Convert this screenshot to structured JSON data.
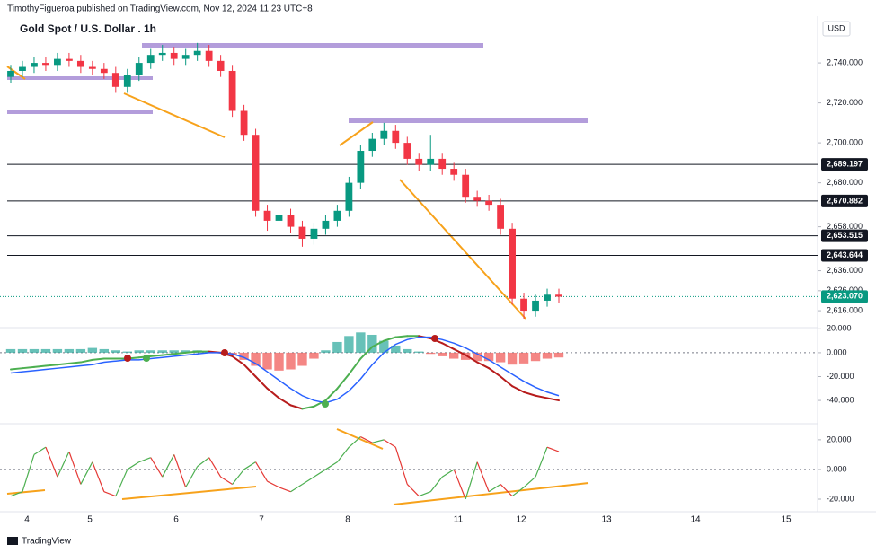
{
  "header": {
    "author_line": "TimothyFigueroa published on TradingView.com, Nov 12, 2024 11:23 UTC+8",
    "currency": "USD"
  },
  "footer": {
    "brand": "TradingView"
  },
  "x_axis_labels": [
    "4",
    "5",
    "6",
    "7",
    "8",
    "11",
    "12",
    "13",
    "14",
    "15"
  ],
  "chart_data": [
    {
      "type": "candlestick",
      "title": "Gold Spot / U.S. Dollar . 1h",
      "up_color": "#089981",
      "down_color": "#f23645",
      "open": [
        2733,
        2736,
        2738,
        2740,
        2739,
        2742,
        2741,
        2738,
        2737,
        2735,
        2728,
        2734,
        2740,
        2744,
        2745,
        2742,
        2744,
        2746,
        2741,
        2736,
        2716,
        2704,
        2666,
        2661,
        2664,
        2658,
        2652,
        2657,
        2661,
        2666,
        2680,
        2696,
        2702,
        2706,
        2700,
        2692,
        2689,
        2692,
        2687,
        2684,
        2673,
        2671,
        2669,
        2657,
        2622,
        2616,
        2621,
        2624
      ],
      "high": [
        2739,
        2741,
        2743,
        2743,
        2745,
        2745,
        2744,
        2741,
        2740,
        2738,
        2737,
        2743,
        2747,
        2749,
        2748,
        2747,
        2750,
        2749,
        2744,
        2739,
        2719,
        2707,
        2669,
        2667,
        2667,
        2661,
        2660,
        2664,
        2669,
        2683,
        2699,
        2705,
        2710,
        2709,
        2703,
        2695,
        2704,
        2695,
        2690,
        2687,
        2676,
        2674,
        2672,
        2660,
        2625,
        2624,
        2627,
        2627
      ],
      "low": [
        2730,
        2733,
        2735,
        2736,
        2736,
        2738,
        2735,
        2734,
        2732,
        2725,
        2725,
        2731,
        2737,
        2741,
        2739,
        2739,
        2741,
        2738,
        2733,
        2713,
        2701,
        2663,
        2656,
        2658,
        2655,
        2648,
        2649,
        2654,
        2658,
        2663,
        2677,
        2693,
        2699,
        2697,
        2689,
        2686,
        2686,
        2684,
        2681,
        2670,
        2668,
        2666,
        2654,
        2619,
        2612,
        2613,
        2618,
        2620
      ],
      "close": [
        2736,
        2738,
        2740,
        2739,
        2742,
        2741,
        2738,
        2737,
        2735,
        2728,
        2734,
        2740,
        2744,
        2745,
        2742,
        2744,
        2746,
        2741,
        2736,
        2716,
        2704,
        2666,
        2661,
        2664,
        2658,
        2652,
        2657,
        2661,
        2666,
        2680,
        2696,
        2702,
        2706,
        2700,
        2692,
        2689,
        2692,
        2687,
        2684,
        2673,
        2671,
        2669,
        2657,
        2622,
        2616,
        2621,
        2624,
        2623
      ],
      "ylim": [
        2607.5,
        2762.5
      ],
      "yticks": [
        {
          "value": 2740,
          "label": "2,740.000"
        },
        {
          "value": 2720,
          "label": "2,720.000"
        },
        {
          "value": 2700,
          "label": "2,700.000"
        },
        {
          "value": 2680,
          "label": "2,680.000"
        },
        {
          "value": 2658,
          "label": "2,658.000"
        },
        {
          "value": 2636,
          "label": "2,636.000"
        },
        {
          "value": 2626,
          "label": "2,626.000"
        },
        {
          "value": 2616,
          "label": "2,616.000"
        }
      ],
      "levels": [
        {
          "value": 2689.197,
          "label": "2,689.197"
        },
        {
          "value": 2670.882,
          "label": "2,670.882"
        },
        {
          "value": 2653.515,
          "label": "2,653.515"
        },
        {
          "value": 2643.644,
          "label": "2,643.644"
        }
      ],
      "last_price": {
        "value": 2623.07,
        "label": "2,623.070"
      },
      "last_color": "#089981"
    },
    {
      "type": "macd",
      "series": [
        {
          "name": "MACD",
          "color": "#4caf50",
          "values": [
            -14,
            -13,
            -12,
            -11,
            -10,
            -9,
            -8,
            -6,
            -5,
            -5,
            -5,
            -4,
            -3,
            -2,
            -1,
            0,
            1,
            1,
            0,
            -3,
            -10,
            -20,
            -30,
            -38,
            -44,
            -47,
            -45,
            -40,
            -30,
            -18,
            -5,
            5,
            10,
            13,
            14,
            14,
            12,
            8,
            3,
            -2,
            -8,
            -13,
            -20,
            -28,
            -33,
            -36,
            -38,
            -40
          ]
        },
        {
          "name": "Signal",
          "color": "#2962ff",
          "values": [
            -17,
            -16,
            -15,
            -14,
            -13,
            -12,
            -11,
            -10,
            -8,
            -7,
            -6,
            -6,
            -5,
            -4,
            -3,
            -2,
            -1,
            0,
            0,
            -1,
            -4,
            -9,
            -16,
            -23,
            -30,
            -36,
            -40,
            -42,
            -39,
            -32,
            -22,
            -10,
            0,
            7,
            11,
            13,
            13,
            11,
            8,
            4,
            -1,
            -6,
            -12,
            -18,
            -24,
            -29,
            -33,
            -36
          ]
        }
      ],
      "histogram": [
        3,
        3,
        3,
        3,
        3,
        3,
        3,
        4,
        3,
        2,
        1,
        2,
        2,
        2,
        2,
        2,
        2,
        1,
        0,
        -2,
        -6,
        -11,
        -14,
        -15,
        -14,
        -11,
        -5,
        2,
        9,
        14,
        17,
        15,
        10,
        6,
        3,
        1,
        -1,
        -3,
        -5,
        -6,
        -7,
        -7,
        -8,
        -10,
        -9,
        -7,
        -5,
        -4
      ],
      "ylim": [
        -58,
        21
      ],
      "yticks": [
        {
          "value": 20,
          "label": "20.000"
        },
        {
          "value": 0,
          "label": "0.000"
        },
        {
          "value": -20,
          "label": "-20.000"
        },
        {
          "value": -40,
          "label": "-40.000"
        }
      ]
    },
    {
      "type": "oscillator",
      "values": [
        -18,
        -15,
        10,
        15,
        -5,
        12,
        -10,
        5,
        -15,
        -18,
        0,
        5,
        8,
        -5,
        10,
        -12,
        2,
        8,
        -5,
        -10,
        0,
        5,
        -8,
        -12,
        -15,
        -10,
        -5,
        0,
        5,
        15,
        22,
        18,
        20,
        15,
        -10,
        -18,
        -15,
        -5,
        0,
        -20,
        5,
        -15,
        -10,
        -18,
        -12,
        -5,
        15,
        12
      ],
      "up_color": "#4caf50",
      "down_color": "#e53935",
      "ylim": [
        -31.5,
        29
      ],
      "yticks": [
        {
          "value": 20,
          "label": "20.000"
        },
        {
          "value": 0,
          "label": "0.000"
        },
        {
          "value": -20,
          "label": "-20.000"
        }
      ]
    }
  ]
}
